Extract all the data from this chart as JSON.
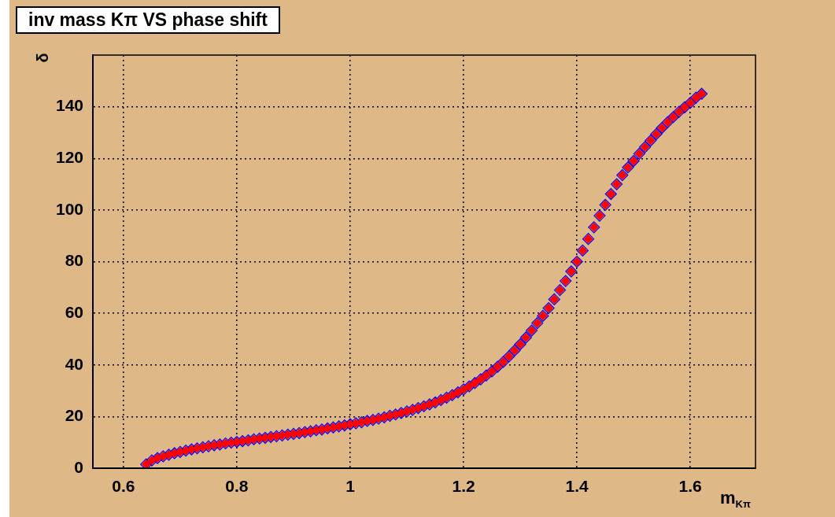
{
  "chart_data": {
    "type": "scatter",
    "title": "inv mass Kπ VS phase shift",
    "xlabel": "m$_{Kπ}$",
    "ylabel": "δ",
    "x": [
      0.64,
      0.65,
      0.66,
      0.67,
      0.68,
      0.69,
      0.7,
      0.71,
      0.72,
      0.73,
      0.74,
      0.75,
      0.76,
      0.77,
      0.78,
      0.79,
      0.8,
      0.81,
      0.82,
      0.83,
      0.84,
      0.85,
      0.86,
      0.87,
      0.88,
      0.89,
      0.9,
      0.91,
      0.92,
      0.93,
      0.94,
      0.95,
      0.96,
      0.97,
      0.98,
      0.99,
      1.0,
      1.01,
      1.02,
      1.03,
      1.04,
      1.05,
      1.06,
      1.07,
      1.08,
      1.09,
      1.1,
      1.11,
      1.12,
      1.13,
      1.14,
      1.15,
      1.16,
      1.17,
      1.18,
      1.19,
      1.2,
      1.21,
      1.22,
      1.23,
      1.24,
      1.25,
      1.26,
      1.27,
      1.28,
      1.29,
      1.3,
      1.31,
      1.32,
      1.33,
      1.34,
      1.35,
      1.36,
      1.37,
      1.38,
      1.39,
      1.4,
      1.41,
      1.42,
      1.43,
      1.44,
      1.45,
      1.46,
      1.47,
      1.48,
      1.49,
      1.5,
      1.51,
      1.52,
      1.53,
      1.54,
      1.55,
      1.56,
      1.57,
      1.58,
      1.59,
      1.6,
      1.61,
      1.62
    ],
    "series": [
      {
        "color": "#ff0000",
        "marker": "diamond",
        "values": [
          1.5,
          3.0,
          3.9,
          4.6,
          5.2,
          5.8,
          6.3,
          6.8,
          7.3,
          7.7,
          8.1,
          8.5,
          8.9,
          9.2,
          9.6,
          9.9,
          10.2,
          10.5,
          10.8,
          11.2,
          11.5,
          11.8,
          12.1,
          12.4,
          12.7,
          13.0,
          13.3,
          13.6,
          14.0,
          14.3,
          14.7,
          15.0,
          15.4,
          15.8,
          16.2,
          16.6,
          17.0,
          17.4,
          17.8,
          18.3,
          18.7,
          19.2,
          19.7,
          20.3,
          20.8,
          21.4,
          22.0,
          22.6,
          23.3,
          24.0,
          24.7,
          25.5,
          26.4,
          27.3,
          28.3,
          29.4,
          30.5,
          31.7,
          33.0,
          34.4,
          35.9,
          37.5,
          39.3,
          41.2,
          43.3,
          45.6,
          48.0,
          50.6,
          53.3,
          56.2,
          59.0,
          62.0,
          65.4,
          69.0,
          72.5,
          76.2,
          80.0,
          84.3,
          88.8,
          93.3,
          97.8,
          102.0,
          106.2,
          110.0,
          113.5,
          116.5,
          119.0,
          121.8,
          124.4,
          126.9,
          129.4,
          131.8,
          134.0,
          136.0,
          138.0,
          139.8,
          141.5,
          143.5,
          145.0
        ]
      },
      {
        "color": "#0000ff",
        "marker": "diamond",
        "values": [
          1.5,
          3.0,
          3.9,
          4.6,
          5.2,
          5.8,
          6.3,
          6.8,
          7.3,
          7.7,
          8.1,
          8.5,
          8.9,
          9.2,
          9.6,
          9.9,
          10.2,
          10.5,
          10.8,
          11.2,
          11.5,
          11.8,
          12.1,
          12.4,
          12.7,
          13.0,
          13.3,
          13.6,
          14.0,
          14.3,
          14.7,
          15.0,
          15.4,
          15.8,
          16.2,
          16.6,
          17.0,
          17.4,
          17.8,
          18.3,
          18.7,
          19.2,
          19.7,
          20.3,
          20.8,
          21.4,
          22.0,
          22.6,
          23.3,
          24.0,
          24.7,
          25.5,
          26.4,
          27.3,
          28.3,
          29.4,
          30.5,
          31.7,
          33.0,
          34.4,
          35.9,
          37.5,
          39.3,
          41.2,
          43.3,
          45.6,
          48.0,
          50.6,
          53.3,
          56.2,
          59.0,
          62.0,
          65.4,
          69.0,
          72.5,
          76.2,
          80.0,
          84.3,
          88.8,
          93.3,
          97.8,
          102.0,
          106.2,
          110.0,
          113.5,
          116.5,
          119.0,
          121.8,
          124.4,
          126.9,
          129.4,
          131.8,
          134.0,
          136.0,
          138.0,
          139.8,
          141.5,
          143.5,
          145.0
        ]
      }
    ],
    "xlim": [
      0.546,
      1.715
    ],
    "ylim": [
      0,
      160
    ],
    "xticks": [
      0.6,
      0.8,
      1,
      1.2,
      1.4,
      1.6
    ],
    "yticks": [
      0,
      20,
      40,
      60,
      80,
      100,
      120,
      140
    ],
    "grid": true,
    "legend": false
  }
}
